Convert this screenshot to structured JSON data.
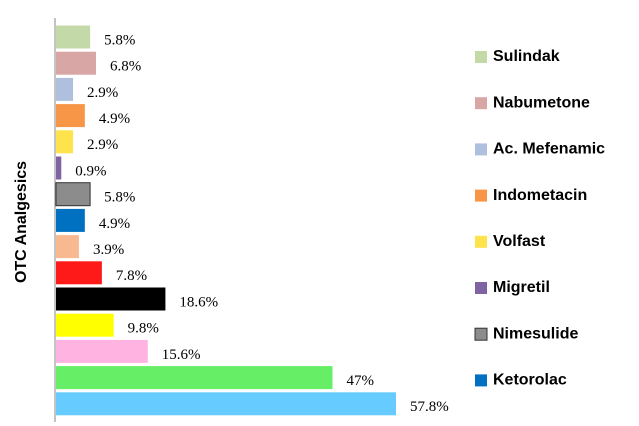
{
  "chart_data": {
    "type": "hbar",
    "y_label": "OTC Analgesics",
    "categories": [
      "Sulindak",
      "Nabumetone",
      "Ac. Mefenamic",
      "Indometacin",
      "Volfast",
      "Migretil",
      "Nimesulide",
      "Ketorolac",
      null,
      null,
      null,
      null,
      null,
      null,
      null
    ],
    "values": [
      5.8,
      6.8,
      2.9,
      4.9,
      2.9,
      0.9,
      5.8,
      4.9,
      3.9,
      7.8,
      18.6,
      9.8,
      15.6,
      47,
      57.8
    ],
    "value_labels": [
      "5.8%",
      "6.8%",
      "2.9%",
      "4.9%",
      "2.9%",
      "0.9%",
      "5.8%",
      "4.9%",
      "3.9%",
      "7.8%",
      "18.6%",
      "9.8%",
      "15.6%",
      "47%",
      "57.8%"
    ],
    "colors": [
      "#c4d9a8",
      "#d9a6a6",
      "#aec0de",
      "#f79646",
      "#ffe34d",
      "#8064a2",
      "#8c8c8c",
      "#0070c0",
      "#f9b990",
      "#ff1a1a",
      "#000000",
      "#ffff00",
      "#ffb3e0",
      "#66ee66",
      "#66ccff"
    ]
  }
}
